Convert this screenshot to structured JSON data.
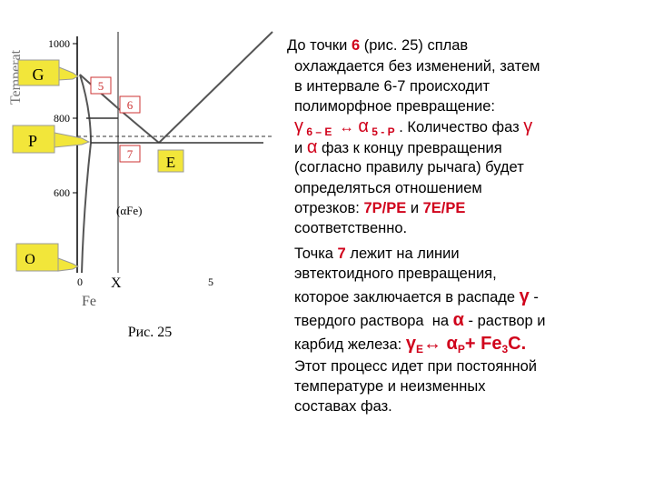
{
  "figure": {
    "axis_title": "Temperat",
    "yticks": [
      "1000",
      "800",
      "600"
    ],
    "xticks": [
      "0",
      "5"
    ],
    "x_axis_label": "Fe",
    "x_marker": "X",
    "phase_label": "(αFe)",
    "point_labels": {
      "G": "G",
      "P": "P",
      "O": "O",
      "E": "E",
      "p5": "5",
      "p6": "6",
      "p7": "7"
    },
    "caption": "Рис. 25"
  },
  "text": {
    "lines": [
      [
        "До точки ",
        "6",
        " (рис. 25) сплав"
      ],
      [
        "охлаждается без изменений, затем"
      ],
      [
        "в интервале 6-7 происходит"
      ],
      [
        "полиморфное превращение:"
      ],
      [
        "γ",
        " 6 – E ",
        " ↔ ",
        "α",
        " 5 - P",
        " . Количество фаз ",
        "γ"
      ],
      [
        "и ",
        "α",
        " фаз к концу превращения"
      ],
      [
        "(согласно правилу рычага) будет"
      ],
      [
        "определяться отношением"
      ],
      [
        "отрезков: ",
        "7P/PE",
        " и ",
        "7E/PE"
      ],
      [
        "соответственно."
      ],
      [
        "Точка ",
        "7",
        " лежит на линии"
      ],
      [
        "эвтектоидного превращения,"
      ],
      [
        "которое заключается в распаде ",
        "γ",
        " -"
      ],
      [
        "твердого раствора  на ",
        "α",
        " - раствор и"
      ],
      [
        "карбид железа: ",
        "γ",
        "E",
        "↔ α",
        "P",
        "+ Fe",
        "3",
        "C."
      ],
      [
        "Этот процесс идет при постоянной"
      ],
      [
        "температуре и неизменных"
      ],
      [
        "составах фаз."
      ]
    ]
  }
}
